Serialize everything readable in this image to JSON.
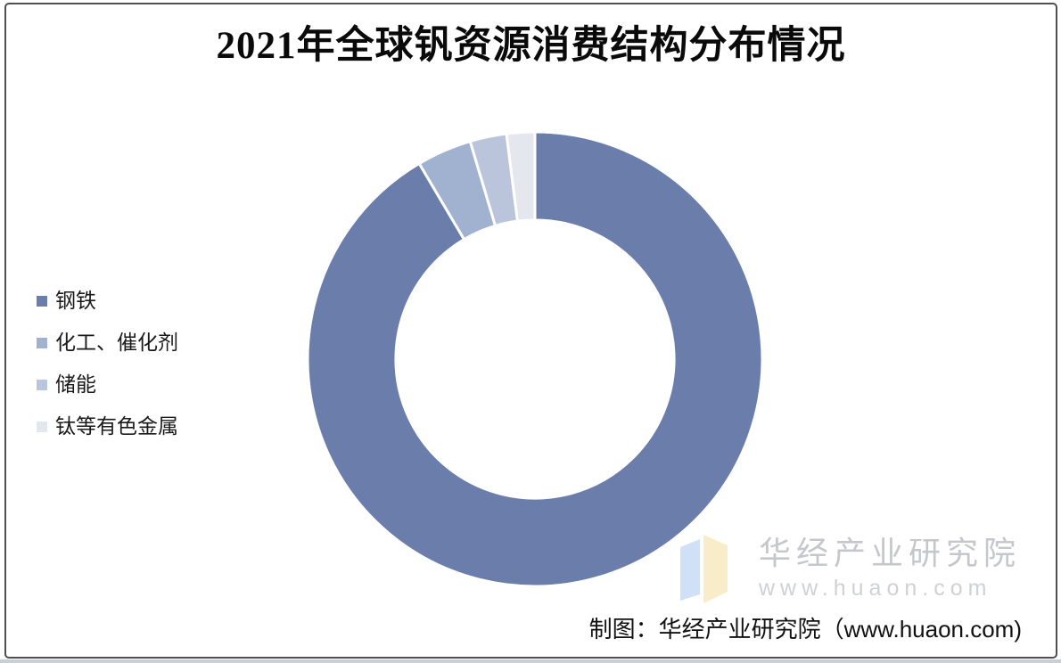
{
  "page": {
    "canvas_background": "#ffffff",
    "frame_border_color": "#4f4f4f",
    "bottom_strip_color": "#c9cfd8"
  },
  "header": {
    "title": "2021年全球钒资源消费结构分布情况"
  },
  "chart_data": {
    "type": "pie",
    "subtype": "donut",
    "title": "2021年全球钒资源消费结构分布情况",
    "categories": [
      "钢铁",
      "化工、催化剂",
      "储能",
      "钛等有色金属"
    ],
    "values": [
      91.5,
      3.9,
      2.6,
      2.0
    ],
    "unit": "%",
    "colors": [
      "#6a7dab",
      "#a1b1d0",
      "#bac5db",
      "#e4e7ed"
    ],
    "slice_border_color": "#ffffff",
    "start_angle": 0,
    "direction": "clockwise",
    "inner_radius_ratio": 0.612,
    "legend_position": "left",
    "data_labels": "none"
  },
  "watermark": {
    "name": "华经产业研究院",
    "url": "www.huaon.com",
    "name_color": "#c5c7cc",
    "url_color": "#cfd1d6",
    "logo_blue": "#cfe0f7",
    "logo_yellow": "#f8edc8"
  },
  "footer": {
    "caption": "制图：华经产业研究院（www.huaon.com)"
  }
}
